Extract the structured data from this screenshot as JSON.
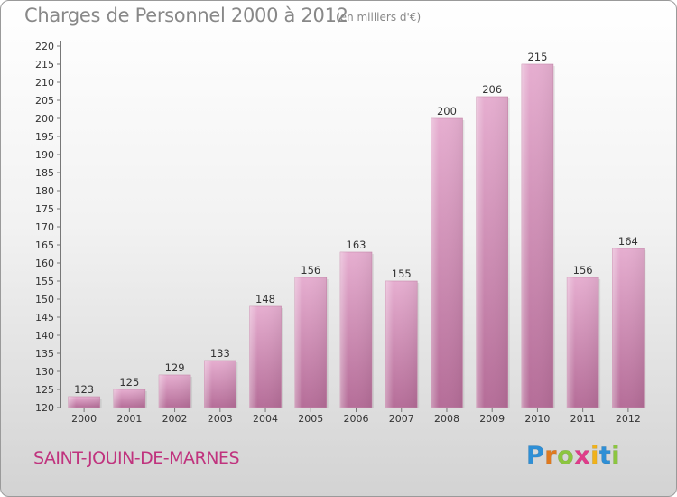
{
  "title": "Charges de Personnel 2000 à 2012",
  "subtitle": "(en milliers d'€)",
  "commune": "SAINT-JOUIN-DE-MARNES",
  "brand": {
    "letters": [
      "P",
      "r",
      "o",
      "x",
      "i",
      "t",
      "i"
    ],
    "colors": [
      "#2e8fd6",
      "#e07a1f",
      "#8cc63f",
      "#e03c8a",
      "#f0b21b",
      "#2e8fd6",
      "#8cc63f"
    ]
  },
  "chart_data": {
    "type": "bar",
    "categories": [
      "2000",
      "2001",
      "2002",
      "2003",
      "2004",
      "2005",
      "2006",
      "2007",
      "2008",
      "2009",
      "2010",
      "2011",
      "2012"
    ],
    "values": [
      123,
      125,
      129,
      133,
      148,
      156,
      163,
      155,
      200,
      206,
      215,
      156,
      164
    ],
    "data_labels": [
      "123",
      "125",
      "129",
      "133",
      "148",
      "156",
      "163",
      "155",
      "200",
      "206",
      "215",
      "156",
      "164"
    ],
    "y_ticks": [
      "120",
      "125",
      "130",
      "135",
      "140",
      "145",
      "150",
      "155",
      "160",
      "165",
      "170",
      "175",
      "180",
      "185",
      "190",
      "195",
      "200",
      "205",
      "210",
      "215",
      "220"
    ],
    "ylim": [
      120,
      220
    ],
    "grid": false,
    "bar_color": "#d67fb0"
  }
}
